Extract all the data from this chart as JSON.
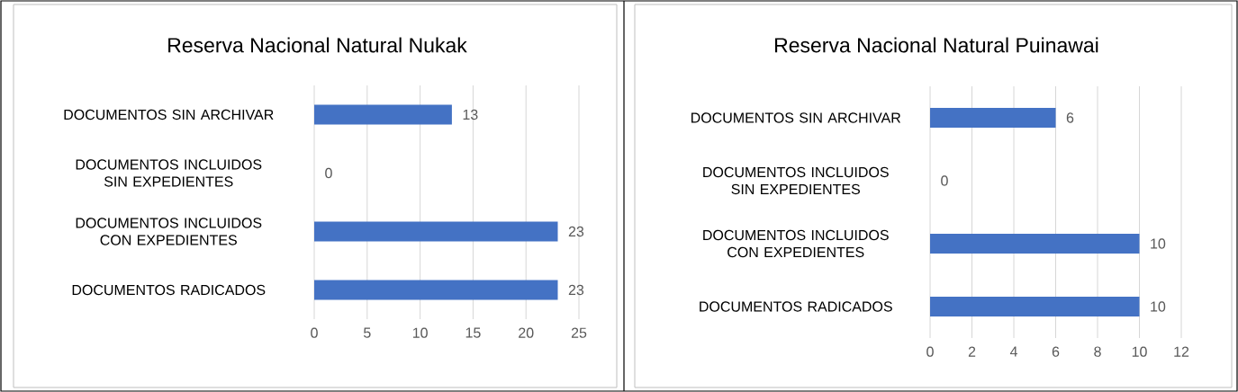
{
  "chart_data": [
    {
      "type": "bar",
      "orientation": "horizontal",
      "title": "Reserva Nacional Natural Nukak",
      "categories": [
        "DOCUMENTOS SIN ARCHIVAR",
        "DOCUMENTOS INCLUIDOS SIN EXPEDIENTES",
        "DOCUMENTOS INCLUIDOS CON EXPEDIENTES",
        "DOCUMENTOS RADICADOS"
      ],
      "values": [
        13,
        0,
        23,
        23
      ],
      "color": "#4472c4",
      "xlim": [
        0,
        25
      ],
      "xticks": [
        0,
        5,
        10,
        15,
        20,
        25
      ],
      "grid": "x",
      "data_labels": true
    },
    {
      "type": "bar",
      "orientation": "horizontal",
      "title": "Reserva Nacional Natural Puinawai",
      "categories": [
        "DOCUMENTOS SIN ARCHIVAR",
        "DOCUMENTOS INCLUIDOS SIN EXPEDIENTES",
        "DOCUMENTOS INCLUIDOS CON EXPEDIENTES",
        "DOCUMENTOS RADICADOS"
      ],
      "values": [
        6,
        0,
        10,
        10
      ],
      "color": "#4472c4",
      "xlim": [
        0,
        12
      ],
      "xticks": [
        0,
        2,
        4,
        6,
        8,
        10,
        12
      ],
      "grid": "x",
      "data_labels": true
    }
  ]
}
